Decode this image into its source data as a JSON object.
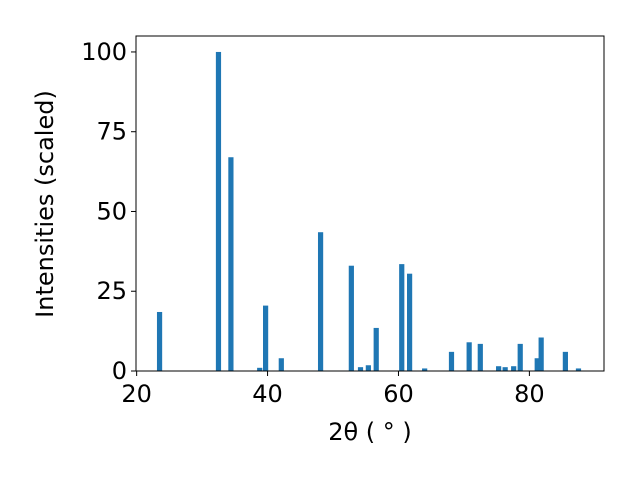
{
  "chart_data": {
    "type": "bar",
    "xlabel": "2θ ( ° )",
    "ylabel": "Intensities (scaled)",
    "x": [
      23.5,
      32.5,
      34.4,
      38.8,
      39.7,
      42.1,
      48.1,
      52.8,
      54.2,
      55.4,
      56.6,
      60.5,
      61.7,
      64.0,
      68.1,
      70.8,
      72.5,
      75.3,
      76.3,
      77.6,
      78.6,
      81.2,
      81.8,
      85.5,
      87.5
    ],
    "values": [
      18.5,
      100,
      67,
      1,
      20.5,
      4,
      43.5,
      33,
      1.2,
      1.8,
      13.5,
      33.5,
      30.5,
      0.8,
      6,
      9,
      8.5,
      1.5,
      1.2,
      1.5,
      8.5,
      4,
      10.5,
      6,
      0.8
    ],
    "color": "#1f77b4",
    "xlim": [
      19.9,
      91.4
    ],
    "xticks": [
      20,
      40,
      60,
      80
    ],
    "ylim": [
      0,
      105
    ],
    "yticks": [
      0,
      25,
      50,
      75,
      100
    ],
    "grid": false
  }
}
